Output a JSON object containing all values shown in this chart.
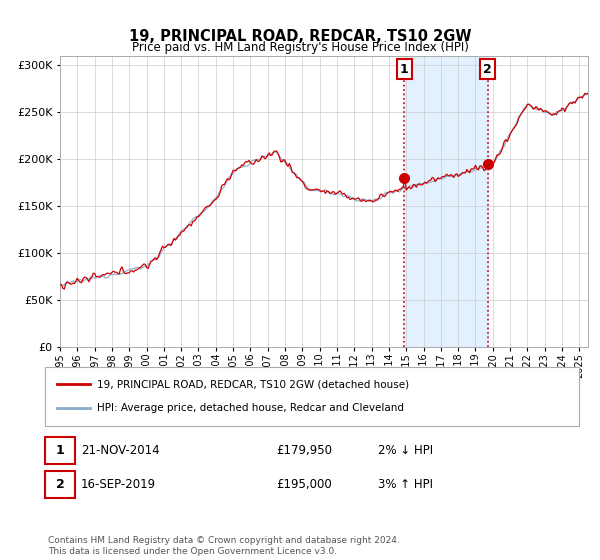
{
  "title": "19, PRINCIPAL ROAD, REDCAR, TS10 2GW",
  "subtitle": "Price paid vs. HM Land Registry's House Price Index (HPI)",
  "property_label": "19, PRINCIPAL ROAD, REDCAR, TS10 2GW (detached house)",
  "hpi_label": "HPI: Average price, detached house, Redcar and Cleveland",
  "footer": "Contains HM Land Registry data © Crown copyright and database right 2024.\nThis data is licensed under the Open Government Licence v3.0.",
  "annotation1": {
    "num": "1",
    "date": "21-NOV-2014",
    "price": "£179,950",
    "pct": "2% ↓ HPI"
  },
  "annotation2": {
    "num": "2",
    "date": "16-SEP-2019",
    "price": "£195,000",
    "pct": "3% ↑ HPI"
  },
  "sale1_year": 2014.89,
  "sale1_price": 179950,
  "sale2_year": 2019.71,
  "sale2_price": 195000,
  "property_color": "#cc0000",
  "hpi_color": "#88aacc",
  "shade_color": "#ddeeff",
  "ylim": [
    0,
    310000
  ],
  "xlim_start": 1995,
  "xlim_end": 2025.5
}
